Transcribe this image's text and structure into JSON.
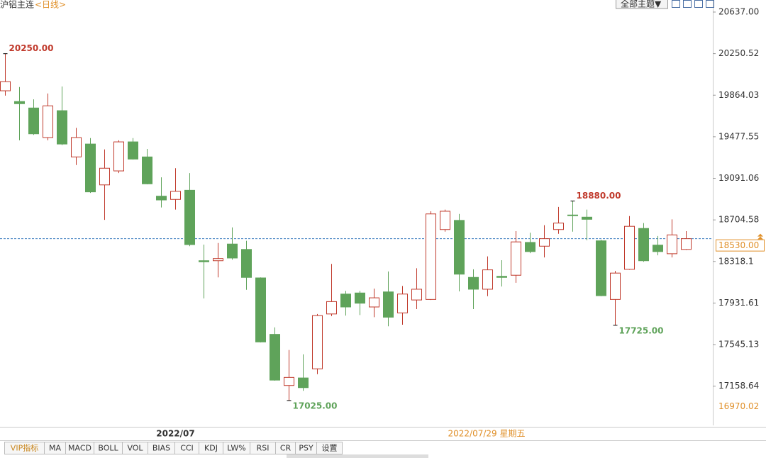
{
  "title": "沪铝主连",
  "period": "<日线>",
  "theme_button": "全部主题▼",
  "tabs": [
    "VIP指标",
    "MA",
    "MACD",
    "BOLL",
    "VOL",
    "BIAS",
    "CCI",
    "KDJ",
    "LW%",
    "RSI",
    "CR",
    "PSY",
    "设置"
  ],
  "chart_data": {
    "type": "candlestick",
    "categories": [
      null,
      null,
      null,
      null,
      null,
      null,
      null,
      null,
      null,
      null,
      null,
      null,
      "2022/07",
      null,
      null,
      null,
      null,
      null,
      null,
      null,
      null,
      null,
      null,
      null,
      null,
      null,
      null,
      null,
      null,
      null,
      null,
      null,
      null,
      null,
      null,
      null,
      null,
      null,
      null,
      null,
      null,
      null,
      null,
      null,
      null,
      null,
      null,
      null,
      null
    ],
    "open": [
      19905,
      19805,
      19745,
      19470,
      19720,
      19290,
      19410,
      19030,
      19160,
      19430,
      19290,
      18925,
      18895,
      18980,
      18325,
      18325,
      18480,
      18430,
      18165,
      17640,
      17165,
      17235,
      17320,
      17830,
      18015,
      18025,
      17895,
      18035,
      17840,
      17960,
      17965,
      18615,
      18700,
      18170,
      18060,
      18180,
      18190,
      18495,
      18460,
      18615,
      18750,
      18730,
      18510,
      17965,
      18245,
      18625,
      18470,
      18390,
      18430
    ],
    "high": [
      20250,
      19940,
      19825,
      19880,
      19945,
      19560,
      19465,
      19360,
      19445,
      19465,
      19365,
      19100,
      19185,
      19140,
      18475,
      18490,
      18635,
      18510,
      18170,
      17705,
      17495,
      17455,
      17830,
      18295,
      18045,
      18045,
      18065,
      18225,
      18090,
      18255,
      18785,
      18800,
      18760,
      18245,
      18365,
      18330,
      18600,
      18585,
      18655,
      18825,
      18880,
      18800,
      18520,
      18230,
      18740,
      18675,
      18555,
      18710,
      18600
    ],
    "low": [
      19860,
      19445,
      19495,
      19445,
      19400,
      19215,
      18955,
      18705,
      19140,
      19265,
      19035,
      18820,
      18800,
      18460,
      17975,
      18170,
      18335,
      18055,
      17565,
      17210,
      17025,
      17115,
      17270,
      17810,
      17815,
      17820,
      17800,
      17715,
      17730,
      17875,
      17960,
      18595,
      18040,
      17875,
      17995,
      18085,
      18120,
      18395,
      18355,
      18575,
      18595,
      18515,
      17995,
      17725,
      18240,
      18315,
      18375,
      18355,
      18425
    ],
    "close": [
      19990,
      19785,
      19505,
      19765,
      19410,
      19470,
      18965,
      19185,
      19430,
      19270,
      19040,
      18890,
      18970,
      18475,
      18315,
      18345,
      18350,
      18170,
      17570,
      17215,
      17240,
      17145,
      17815,
      17945,
      17895,
      17930,
      17980,
      17800,
      18015,
      18060,
      18760,
      18785,
      18200,
      18060,
      18240,
      18170,
      18500,
      18410,
      18530,
      18675,
      18745,
      18710,
      18000,
      18210,
      18645,
      18325,
      18410,
      18565,
      18530
    ],
    "up_color": "#c0392b",
    "down_color": "#5fa35a",
    "ylim": [
      16794,
      20749
    ],
    "yticks": [
      {
        "value": 20637,
        "label": "20637.00"
      },
      20250.52,
      19864.03,
      19477.55,
      19091.06,
      18704.58,
      18318.1,
      17931.61,
      17545.13,
      17158.64
    ],
    "current_price": {
      "value": 18530,
      "label": "18530.00"
    },
    "range_low": 16970.02,
    "annotations": [
      {
        "value": 20250,
        "label": "20250.00"
      },
      {
        "value": 18880,
        "label": "18880.00"
      },
      {
        "value": 17025,
        "label": "17025.00"
      },
      {
        "value": 17725,
        "label": "17725.00"
      }
    ],
    "crosshair_label": "2022/07/29 星期五"
  }
}
